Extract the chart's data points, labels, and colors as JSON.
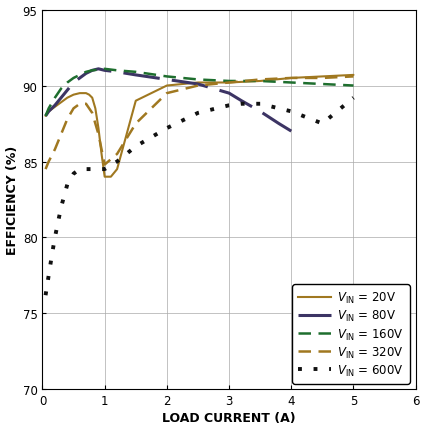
{
  "title": "",
  "xlabel": "LOAD CURRENT (A)",
  "ylabel": "EFFICIENCY (%)",
  "xlim": [
    0,
    6
  ],
  "ylim": [
    70,
    95
  ],
  "xticks": [
    0,
    1,
    2,
    3,
    4,
    5,
    6
  ],
  "yticks": [
    70,
    75,
    80,
    85,
    90,
    95
  ],
  "bg_color": "#ffffff",
  "series": [
    {
      "label": "V_IN = 20V",
      "color": "#A07820",
      "linestyle": "solid",
      "linewidth": 1.5,
      "dash": [],
      "x": [
        0.05,
        0.1,
        0.2,
        0.3,
        0.4,
        0.5,
        0.6,
        0.7,
        0.75,
        0.8,
        0.85,
        0.9,
        0.95,
        1.0,
        1.1,
        1.2,
        1.5,
        2.0,
        2.5,
        3.0,
        3.5,
        4.0,
        4.5,
        5.0
      ],
      "y": [
        88.0,
        88.3,
        88.6,
        88.9,
        89.2,
        89.4,
        89.5,
        89.5,
        89.4,
        89.2,
        88.5,
        87.2,
        85.5,
        84.0,
        84.0,
        84.5,
        89.0,
        90.0,
        90.2,
        90.2,
        90.3,
        90.5,
        90.6,
        90.7
      ]
    },
    {
      "label": "V_IN = 80V",
      "color": "#3C3464",
      "linestyle": "dashed",
      "linewidth": 2.2,
      "dash": [
        12,
        4
      ],
      "x": [
        0.05,
        0.1,
        0.2,
        0.3,
        0.4,
        0.5,
        0.6,
        0.7,
        0.8,
        0.9,
        1.0,
        1.2,
        1.5,
        2.0,
        2.5,
        3.0,
        3.2,
        3.5,
        3.8,
        4.0
      ],
      "y": [
        88.0,
        88.3,
        88.7,
        89.2,
        89.7,
        90.2,
        90.5,
        90.8,
        91.0,
        91.1,
        91.0,
        90.9,
        90.7,
        90.4,
        90.1,
        89.5,
        89.0,
        88.3,
        87.5,
        87.0
      ]
    },
    {
      "label": "V_IN = 160V",
      "color": "#1E6E2E",
      "linestyle": "dashed",
      "linewidth": 1.8,
      "dash": [
        5,
        3
      ],
      "x": [
        0.05,
        0.1,
        0.2,
        0.3,
        0.4,
        0.5,
        0.6,
        0.7,
        0.8,
        1.0,
        1.2,
        1.5,
        2.0,
        2.5,
        3.0,
        3.5,
        4.0,
        4.5,
        5.0
      ],
      "y": [
        88.0,
        88.5,
        89.2,
        89.8,
        90.2,
        90.5,
        90.7,
        90.9,
        91.0,
        91.1,
        91.0,
        90.9,
        90.6,
        90.4,
        90.3,
        90.3,
        90.2,
        90.1,
        90.0
      ]
    },
    {
      "label": "V_IN = 320V",
      "color": "#A07820",
      "linestyle": "dashed",
      "linewidth": 1.8,
      "dash": [
        5,
        3
      ],
      "x": [
        0.05,
        0.1,
        0.2,
        0.3,
        0.4,
        0.5,
        0.6,
        0.7,
        0.8,
        0.9,
        1.0,
        1.2,
        1.5,
        2.0,
        2.5,
        3.0,
        3.5,
        4.0,
        4.5,
        5.0
      ],
      "y": [
        84.5,
        85.0,
        85.8,
        86.8,
        87.8,
        88.5,
        88.8,
        88.8,
        88.2,
        86.8,
        84.8,
        85.5,
        87.5,
        89.5,
        90.0,
        90.2,
        90.4,
        90.5,
        90.5,
        90.6
      ]
    },
    {
      "label": "V_IN = 600V",
      "color": "#111111",
      "linestyle": "dotted",
      "linewidth": 2.8,
      "dash": [
        1,
        3
      ],
      "x": [
        0.05,
        0.1,
        0.15,
        0.2,
        0.25,
        0.3,
        0.4,
        0.5,
        0.6,
        0.7,
        0.8,
        0.9,
        1.0,
        1.2,
        1.5,
        2.0,
        2.5,
        3.0,
        3.2,
        3.5,
        4.0,
        4.5,
        5.0
      ],
      "y": [
        76.2,
        77.5,
        78.8,
        80.0,
        81.0,
        82.0,
        83.5,
        84.2,
        84.5,
        84.5,
        84.5,
        84.5,
        84.5,
        85.0,
        86.0,
        87.2,
        88.2,
        88.7,
        88.8,
        88.8,
        88.3,
        87.5,
        89.2
      ]
    }
  ],
  "legend_labels": [
    "$V_{\\mathrm{IN}}$ = 20V",
    "$V_{\\mathrm{IN}}$ = 80V",
    "$V_{\\mathrm{IN}}$ = 160V",
    "$V_{\\mathrm{IN}}$ = 320V",
    "$V_{\\mathrm{IN}}$ = 600V"
  ],
  "legend_styles": [
    {
      "color": "#A07820",
      "linestyle": "solid",
      "linewidth": 1.5,
      "dash": []
    },
    {
      "color": "#3C3464",
      "linestyle": "dashed",
      "linewidth": 2.2,
      "dash": [
        12,
        4
      ]
    },
    {
      "color": "#1E6E2E",
      "linestyle": "dashed",
      "linewidth": 1.8,
      "dash": [
        5,
        3
      ]
    },
    {
      "color": "#A07820",
      "linestyle": "dashed",
      "linewidth": 1.8,
      "dash": [
        5,
        3
      ]
    },
    {
      "color": "#111111",
      "linestyle": "dotted",
      "linewidth": 2.8,
      "dash": [
        1,
        3
      ]
    }
  ]
}
